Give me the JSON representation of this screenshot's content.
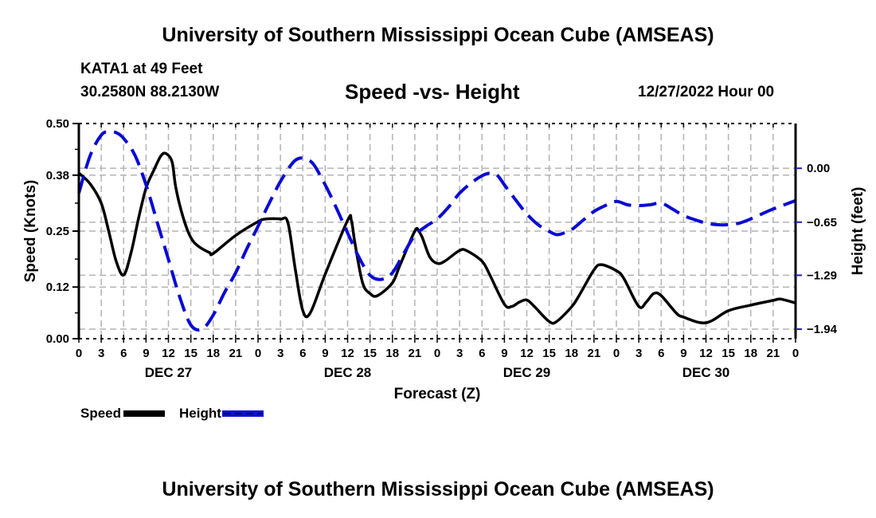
{
  "header": {
    "main_title": "University of Southern Mississippi Ocean Cube (AMSEAS)",
    "station": "KATA1 at 49 Feet",
    "coords": "30.2580N  88.2130W",
    "chart_title": "Speed -vs- Height",
    "run_time": "12/27/2022 Hour 00"
  },
  "footer": {
    "title": "University of Southern Mississippi Ocean Cube (AMSEAS)"
  },
  "legend": {
    "speed_label": "Speed",
    "height_label": "Height"
  },
  "colors": {
    "speed": "#000000",
    "height": "#0a0ad2",
    "grid": "#b4b4b4",
    "right_ticks": "#2020c0"
  },
  "chart_data": {
    "type": "line",
    "title": "Speed -vs- Height",
    "xlabel": "Forecast (Z)",
    "ylabel": "Speed (Knots)",
    "y2label": "Height (feet)",
    "x_unit": "forecast hours from 12/27/2022 00Z",
    "xlim": [
      0,
      96
    ],
    "ylim": [
      0,
      0.5
    ],
    "y2lim": [
      -2.055,
      0.54
    ],
    "grid": true,
    "legend_position": "bottom-left",
    "x_tick_hours": [
      0,
      3,
      6,
      9,
      12,
      15,
      18,
      21,
      24,
      27,
      30,
      33,
      36,
      39,
      42,
      45,
      48,
      51,
      54,
      57,
      60,
      63,
      66,
      69,
      72,
      75,
      78,
      81,
      84,
      87,
      90,
      93,
      96
    ],
    "x_tick_labels": [
      "0",
      "3",
      "6",
      "9",
      "12",
      "15",
      "18",
      "21",
      "0",
      "3",
      "6",
      "9",
      "12",
      "15",
      "18",
      "21",
      "0",
      "3",
      "6",
      "9",
      "12",
      "15",
      "18",
      "21",
      "0",
      "3",
      "6",
      "9",
      "12",
      "15",
      "18",
      "21",
      "0"
    ],
    "day_labels": [
      {
        "label": "DEC 27",
        "hour": 12
      },
      {
        "label": "DEC 28",
        "hour": 36
      },
      {
        "label": "DEC 29",
        "hour": 60
      },
      {
        "label": "DEC 30",
        "hour": 84
      }
    ],
    "y_ticks": [
      0.0,
      0.12,
      0.25,
      0.38,
      0.5
    ],
    "y_tick_labels": [
      "0.00",
      "0.12",
      "0.25",
      "0.38",
      "0.50"
    ],
    "y2_ticks": [
      0.0,
      -0.65,
      -1.29,
      -1.94
    ],
    "y2_tick_labels": [
      "0.00",
      "−0.65",
      "−1.29",
      "−1.94"
    ],
    "series": [
      {
        "name": "Speed",
        "axis": "left",
        "style": "solid",
        "x": [
          0,
          1.5,
          3,
          4,
          5,
          6,
          7,
          8,
          9,
          10,
          11,
          11.7,
          12.5,
          13,
          14,
          15,
          16,
          17.5,
          18,
          21,
          24,
          25,
          27,
          28,
          29,
          30,
          31,
          33,
          36,
          36.5,
          37,
          38,
          39,
          40,
          42,
          43,
          45,
          45.5,
          46,
          47,
          48,
          49,
          51,
          52,
          54,
          55,
          57,
          58,
          59,
          60,
          61,
          63,
          64,
          66,
          67,
          69,
          70,
          72,
          73,
          75,
          76,
          77,
          78,
          80,
          81,
          84,
          87,
          90,
          93,
          94,
          96
        ],
        "values": [
          0.385,
          0.36,
          0.315,
          0.25,
          0.18,
          0.148,
          0.2,
          0.28,
          0.35,
          0.39,
          0.425,
          0.43,
          0.41,
          0.35,
          0.28,
          0.235,
          0.215,
          0.2,
          0.198,
          0.24,
          0.272,
          0.278,
          0.278,
          0.27,
          0.16,
          0.065,
          0.06,
          0.15,
          0.275,
          0.275,
          0.22,
          0.13,
          0.105,
          0.1,
          0.13,
          0.17,
          0.25,
          0.25,
          0.235,
          0.19,
          0.175,
          0.18,
          0.205,
          0.204,
          0.18,
          0.15,
          0.08,
          0.075,
          0.085,
          0.09,
          0.075,
          0.04,
          0.04,
          0.074,
          0.1,
          0.16,
          0.172,
          0.158,
          0.14,
          0.075,
          0.085,
          0.105,
          0.1,
          0.06,
          0.05,
          0.037,
          0.065,
          0.078,
          0.089,
          0.092,
          0.083
        ]
      },
      {
        "name": "Height",
        "axis": "right",
        "style": "dashed",
        "x": [
          0,
          1.5,
          3,
          4,
          5,
          6,
          7.5,
          9,
          10.5,
          12,
          13.5,
          15,
          16.5,
          18,
          19.5,
          21,
          22.5,
          24,
          25.5,
          27,
          28.5,
          29.5,
          30.5,
          31.5,
          33,
          34.5,
          36,
          37.5,
          39,
          40.5,
          42,
          43.5,
          45,
          46.5,
          48,
          49.5,
          51,
          52.5,
          54,
          55,
          56,
          57,
          58.5,
          60,
          61.5,
          63,
          64,
          65,
          66,
          67.5,
          69,
          70.5,
          72,
          73.5,
          75,
          76.5,
          78,
          79.5,
          81,
          82.5,
          84,
          85.5,
          87,
          88.5,
          90,
          91.5,
          93,
          94.5,
          96
        ],
        "values": [
          -0.3,
          0.15,
          0.4,
          0.44,
          0.43,
          0.36,
          0.16,
          -0.2,
          -0.65,
          -1.1,
          -1.55,
          -1.89,
          -1.94,
          -1.77,
          -1.5,
          -1.26,
          -0.97,
          -0.7,
          -0.42,
          -0.16,
          0.05,
          0.12,
          0.11,
          0.04,
          -0.2,
          -0.48,
          -0.78,
          -1.07,
          -1.29,
          -1.34,
          -1.26,
          -1.03,
          -0.81,
          -0.7,
          -0.61,
          -0.47,
          -0.3,
          -0.18,
          -0.09,
          -0.06,
          -0.08,
          -0.2,
          -0.38,
          -0.55,
          -0.68,
          -0.76,
          -0.8,
          -0.78,
          -0.74,
          -0.63,
          -0.52,
          -0.45,
          -0.4,
          -0.44,
          -0.45,
          -0.44,
          -0.42,
          -0.49,
          -0.57,
          -0.62,
          -0.66,
          -0.68,
          -0.68,
          -0.66,
          -0.61,
          -0.55,
          -0.49,
          -0.44,
          -0.39
        ]
      }
    ]
  }
}
